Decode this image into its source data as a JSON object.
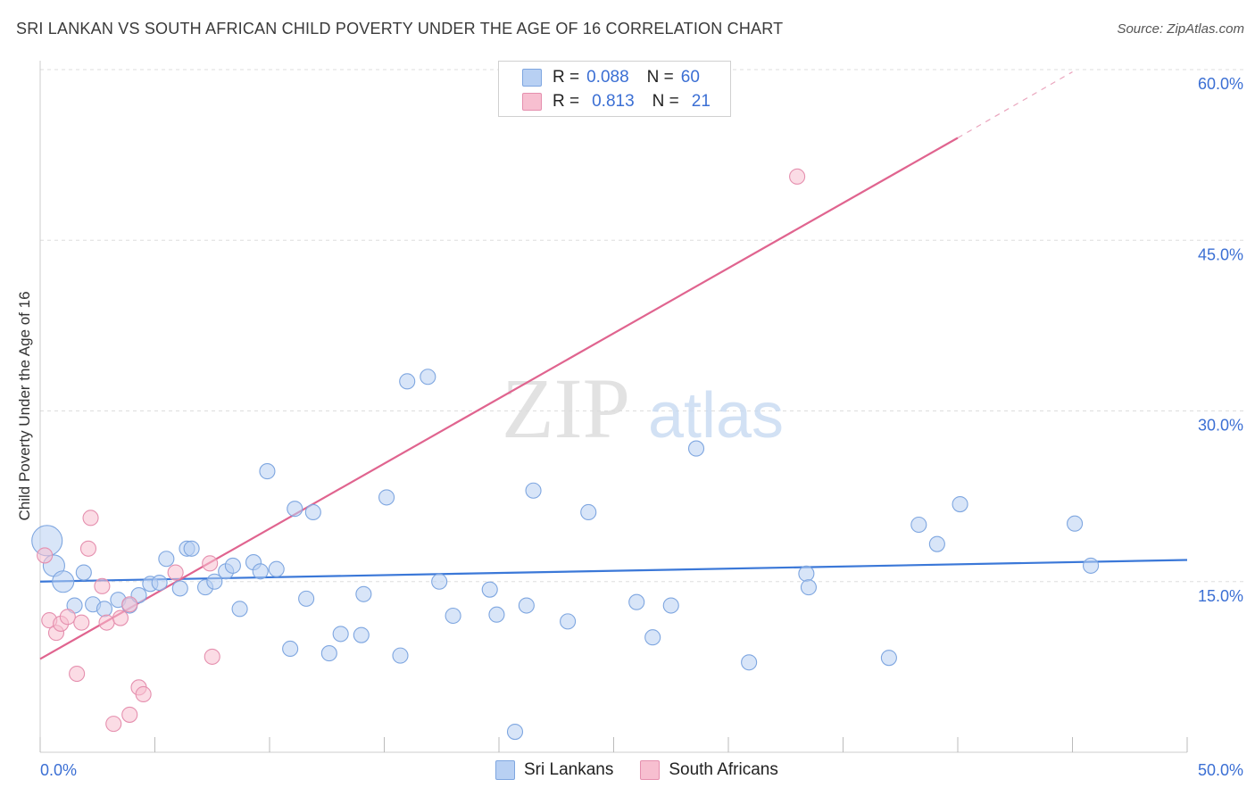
{
  "header": {
    "title": "SRI LANKAN VS SOUTH AFRICAN CHILD POVERTY UNDER THE AGE OF 16 CORRELATION CHART",
    "source": "Source: ZipAtlas.com"
  },
  "watermark": {
    "zip": "ZIP",
    "atlas": "atlas"
  },
  "legend": {
    "rows": [
      {
        "r_label": "R =",
        "r_value": "0.088",
        "n_label": "N =",
        "n_value": "60"
      },
      {
        "r_label": "R =",
        "r_value": "0.813",
        "n_label": "N =",
        "n_value": "21"
      }
    ]
  },
  "bottom_legend": [
    "Sri Lankans",
    "South Africans"
  ],
  "chart_data": {
    "type": "scatter",
    "title": "SRI LANKAN VS SOUTH AFRICAN CHILD POVERTY UNDER THE AGE OF 16 CORRELATION CHART",
    "xlabel": "",
    "ylabel": "Child Poverty Under the Age of 16",
    "xlim": [
      0,
      50
    ],
    "ylim": [
      0,
      60
    ],
    "x_tick_labels": [
      "0.0%",
      "50.0%"
    ],
    "y_tick_labels": [
      "15.0%",
      "30.0%",
      "45.0%",
      "60.0%"
    ],
    "y_ticks": [
      15,
      30,
      45,
      60
    ],
    "grid": true,
    "colors": {
      "blue": "#3b78d8",
      "blue_fill": "#b8d0f3",
      "pink": "#e0648f",
      "pink_fill": "#f7bfd0",
      "axis_text": "#3b6fd4"
    },
    "series": [
      {
        "name": "Sri Lankans",
        "color": "#3b78d8",
        "trend": {
          "x": [
            0,
            50
          ],
          "y": [
            15.0,
            16.9
          ]
        },
        "points": [
          [
            0.3,
            18.6,
            3
          ],
          [
            0.6,
            16.4,
            2
          ],
          [
            1.0,
            15.0,
            2
          ],
          [
            1.5,
            12.9,
            1
          ],
          [
            1.9,
            15.8,
            1
          ],
          [
            2.3,
            13.0,
            1
          ],
          [
            2.8,
            12.6,
            1
          ],
          [
            3.4,
            13.4,
            1
          ],
          [
            3.9,
            12.9,
            1
          ],
          [
            4.3,
            13.8,
            1
          ],
          [
            4.8,
            14.8,
            1
          ],
          [
            5.2,
            14.9,
            1
          ],
          [
            5.5,
            17.0,
            1
          ],
          [
            6.1,
            14.4,
            1
          ],
          [
            6.4,
            17.9,
            1
          ],
          [
            6.6,
            17.9,
            1
          ],
          [
            7.2,
            14.5,
            1
          ],
          [
            7.6,
            15.0,
            1
          ],
          [
            8.1,
            15.9,
            1
          ],
          [
            8.4,
            16.4,
            1
          ],
          [
            8.7,
            12.6,
            1
          ],
          [
            9.3,
            16.7,
            1
          ],
          [
            9.6,
            15.9,
            1
          ],
          [
            9.9,
            24.7,
            1
          ],
          [
            10.3,
            16.1,
            1
          ],
          [
            10.9,
            9.1,
            1
          ],
          [
            11.1,
            21.4,
            1
          ],
          [
            11.6,
            13.5,
            1
          ],
          [
            11.9,
            21.1,
            1
          ],
          [
            12.6,
            8.7,
            1
          ],
          [
            13.1,
            10.4,
            1
          ],
          [
            14.0,
            10.3,
            1
          ],
          [
            14.1,
            13.9,
            1
          ],
          [
            15.1,
            22.4,
            1
          ],
          [
            15.7,
            8.5,
            1
          ],
          [
            16.0,
            32.6,
            1
          ],
          [
            16.9,
            33.0,
            1
          ],
          [
            17.4,
            15.0,
            1
          ],
          [
            18.0,
            12.0,
            1
          ],
          [
            19.6,
            14.3,
            1
          ],
          [
            19.9,
            12.1,
            1
          ],
          [
            20.7,
            1.8,
            1
          ],
          [
            21.2,
            12.9,
            1
          ],
          [
            21.5,
            23.0,
            1
          ],
          [
            23.0,
            11.5,
            1
          ],
          [
            23.9,
            21.1,
            1
          ],
          [
            26.0,
            13.2,
            1
          ],
          [
            26.7,
            10.1,
            1
          ],
          [
            27.5,
            12.9,
            1
          ],
          [
            28.6,
            26.7,
            1
          ],
          [
            30.9,
            7.9,
            1
          ],
          [
            33.4,
            15.7,
            1
          ],
          [
            33.5,
            14.5,
            1
          ],
          [
            37.0,
            8.3,
            1
          ],
          [
            38.3,
            20.0,
            1
          ],
          [
            39.1,
            18.3,
            1
          ],
          [
            40.1,
            21.8,
            1
          ],
          [
            45.1,
            20.1,
            1
          ],
          [
            45.8,
            16.4,
            1
          ]
        ]
      },
      {
        "name": "South Africans",
        "color": "#e0648f",
        "trend": {
          "x": [
            0,
            40
          ],
          "y": [
            8.2,
            54.0
          ]
        },
        "trend_extension": {
          "x": [
            40,
            45
          ],
          "y": [
            54.0,
            59.8
          ]
        },
        "points": [
          [
            0.2,
            17.3,
            1
          ],
          [
            0.4,
            11.6,
            1
          ],
          [
            0.7,
            10.5,
            1
          ],
          [
            0.9,
            11.3,
            1
          ],
          [
            1.2,
            11.9,
            1
          ],
          [
            1.6,
            6.9,
            1
          ],
          [
            1.8,
            11.4,
            1
          ],
          [
            2.1,
            17.9,
            1
          ],
          [
            2.2,
            20.6,
            1
          ],
          [
            2.7,
            14.6,
            1
          ],
          [
            2.9,
            11.4,
            1
          ],
          [
            3.2,
            2.5,
            1
          ],
          [
            3.5,
            11.8,
            1
          ],
          [
            3.9,
            3.3,
            1
          ],
          [
            3.9,
            13.0,
            1
          ],
          [
            4.3,
            5.7,
            1
          ],
          [
            4.5,
            5.1,
            1
          ],
          [
            5.9,
            15.8,
            1
          ],
          [
            7.4,
            16.6,
            1
          ],
          [
            7.5,
            8.4,
            1
          ],
          [
            33.0,
            50.6,
            1
          ]
        ]
      }
    ]
  }
}
